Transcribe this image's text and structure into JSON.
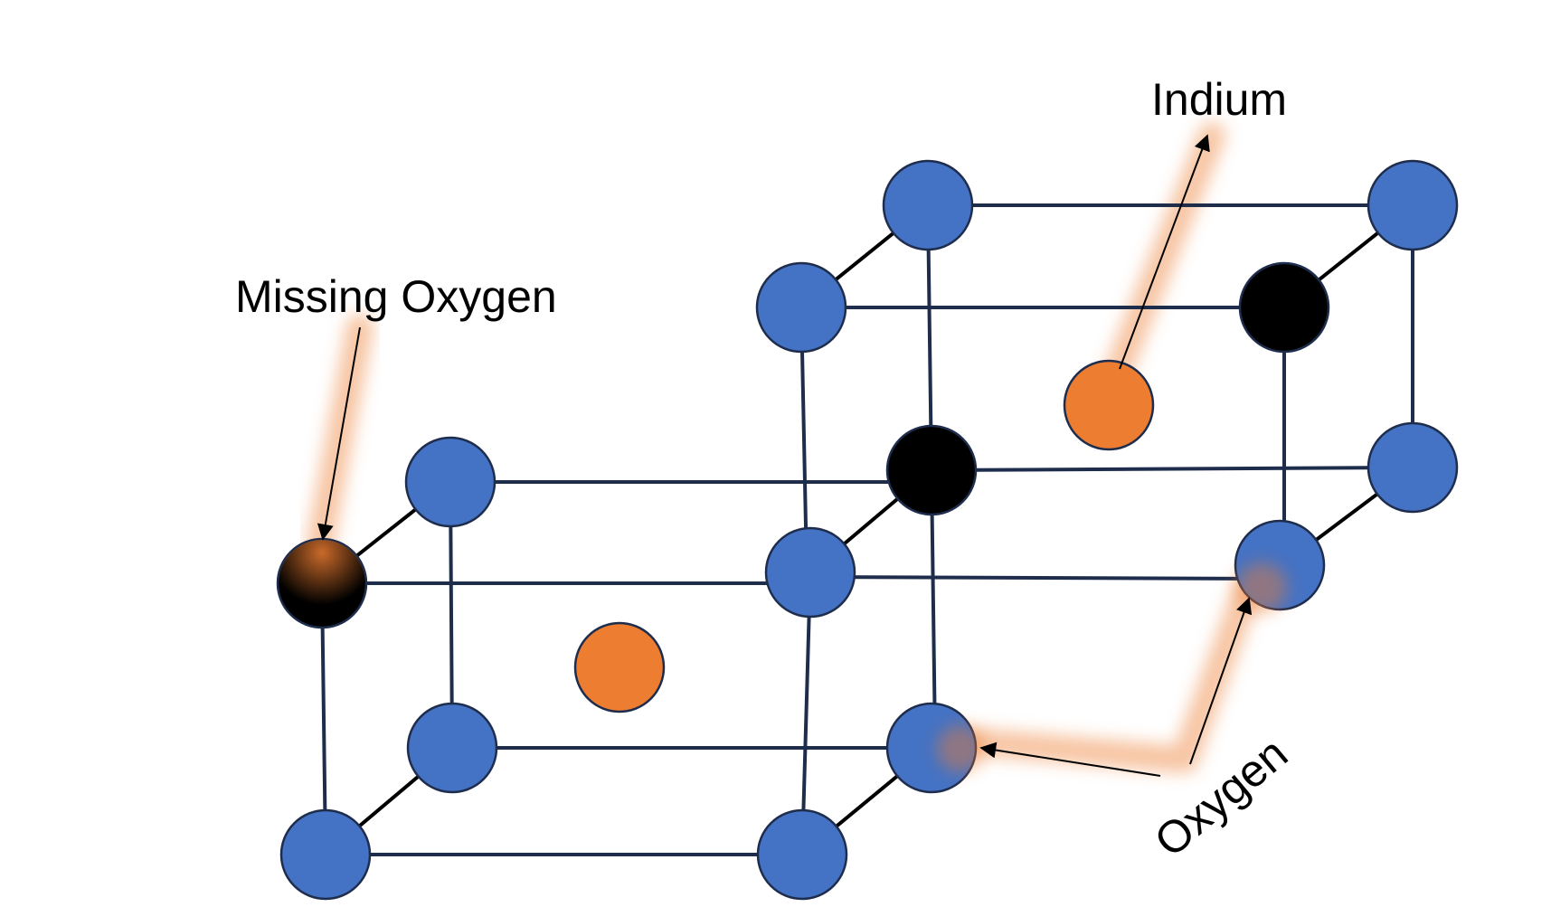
{
  "labels": {
    "missing_oxygen": "Missing Oxygen",
    "indium": "Indium",
    "oxygen": "Oxygen"
  },
  "colors": {
    "oxygen_atom": "#4472C4",
    "indium_atom": "#ED7D31",
    "missing_oxygen_atom": "#000000",
    "atom_outline": "#1F2D4D",
    "bond": "#1F2D4D",
    "highlight_glow": "#F4B183",
    "arrow": "#000000"
  },
  "atoms": [
    {
      "id": "o-front-bl-top",
      "kind": "oxygen"
    },
    {
      "id": "vacancy-front-left",
      "kind": "vacancy"
    },
    {
      "id": "o-front-l-bottom-back",
      "kind": "oxygen"
    },
    {
      "id": "o-front-l-bottom",
      "kind": "oxygen"
    },
    {
      "id": "o-front-mid-top",
      "kind": "oxygen"
    },
    {
      "id": "o-front-mid-bottom",
      "kind": "oxygen"
    },
    {
      "id": "o-back-tl",
      "kind": "oxygen"
    },
    {
      "id": "o-back-tl-front",
      "kind": "oxygen"
    },
    {
      "id": "o-back-tr",
      "kind": "oxygen"
    },
    {
      "id": "vacancy-back-tr-front",
      "kind": "vacancy"
    },
    {
      "id": "vacancy-center",
      "kind": "vacancy"
    },
    {
      "id": "o-back-r-mid",
      "kind": "oxygen"
    },
    {
      "id": "o-back-r-front",
      "kind": "oxygen"
    },
    {
      "id": "o-center-bottom",
      "kind": "oxygen"
    },
    {
      "id": "indium-front",
      "kind": "indium"
    },
    {
      "id": "indium-back",
      "kind": "indium"
    }
  ]
}
